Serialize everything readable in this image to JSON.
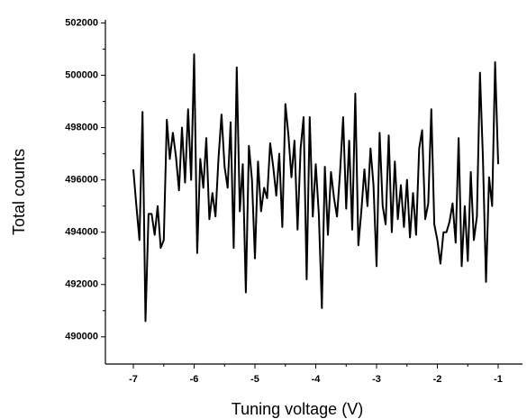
{
  "chart_data": {
    "type": "line",
    "x_label": "Tuning voltage (V)",
    "y_label": "Total counts",
    "xlim": [
      -7.46,
      -0.6
    ],
    "ylim": [
      488960,
      502120
    ],
    "xticks": [
      -7,
      -6,
      -5,
      -4,
      -3,
      -2,
      -1
    ],
    "yticks": [
      490000,
      492000,
      494000,
      496000,
      498000,
      500000,
      502000
    ],
    "x": [
      -7.0,
      -6.95,
      -6.9,
      -6.85,
      -6.8,
      -6.75,
      -6.7,
      -6.65,
      -6.6,
      -6.55,
      -6.5,
      -6.45,
      -6.4,
      -6.35,
      -6.3,
      -6.25,
      -6.2,
      -6.15,
      -6.1,
      -6.05,
      -6.0,
      -5.95,
      -5.9,
      -5.85,
      -5.8,
      -5.75,
      -5.7,
      -5.65,
      -5.6,
      -5.55,
      -5.5,
      -5.45,
      -5.4,
      -5.35,
      -5.3,
      -5.25,
      -5.2,
      -5.15,
      -5.1,
      -5.05,
      -5.0,
      -4.95,
      -4.9,
      -4.85,
      -4.8,
      -4.75,
      -4.7,
      -4.65,
      -4.6,
      -4.55,
      -4.5,
      -4.45,
      -4.4,
      -4.35,
      -4.3,
      -4.25,
      -4.2,
      -4.15,
      -4.1,
      -4.05,
      -4.0,
      -3.95,
      -3.9,
      -3.85,
      -3.8,
      -3.75,
      -3.7,
      -3.65,
      -3.6,
      -3.55,
      -3.5,
      -3.45,
      -3.4,
      -3.35,
      -3.3,
      -3.25,
      -3.2,
      -3.15,
      -3.1,
      -3.05,
      -3.0,
      -2.95,
      -2.9,
      -2.85,
      -2.8,
      -2.75,
      -2.7,
      -2.65,
      -2.6,
      -2.55,
      -2.5,
      -2.45,
      -2.4,
      -2.35,
      -2.3,
      -2.25,
      -2.2,
      -2.15,
      -2.1,
      -2.05,
      -2.0,
      -1.95,
      -1.9,
      -1.85,
      -1.8,
      -1.75,
      -1.7,
      -1.65,
      -1.6,
      -1.55,
      -1.5,
      -1.45,
      -1.4,
      -1.35,
      -1.3,
      -1.25,
      -1.2,
      -1.15,
      -1.1,
      -1.05,
      -1.0
    ],
    "series": [
      {
        "color": "#000000",
        "values": [
          496400,
          495000,
          493700,
          498600,
          490600,
          494700,
          494700,
          493900,
          495000,
          493400,
          493700,
          498300,
          496800,
          497800,
          496900,
          495600,
          498000,
          495900,
          498700,
          496000,
          500800,
          493200,
          496800,
          495700,
          497600,
          494500,
          495500,
          494600,
          496800,
          498500,
          496500,
          495700,
          498200,
          493400,
          500300,
          494800,
          496600,
          491700,
          497300,
          496000,
          493000,
          496700,
          494800,
          495700,
          495300,
          497400,
          496500,
          495400,
          497000,
          494200,
          498900,
          497700,
          496100,
          497500,
          494100,
          497200,
          498400,
          492200,
          498400,
          494600,
          496600,
          494700,
          491100,
          496500,
          493900,
          496300,
          495300,
          494600,
          496300,
          498400,
          494900,
          497500,
          494100,
          499300,
          493500,
          494800,
          496400,
          495000,
          497200,
          495800,
          492700,
          497800,
          495000,
          494300,
          497700,
          494000,
          496700,
          494500,
          495800,
          494200,
          496000,
          493800,
          495500,
          493900,
          497200,
          497900,
          494500,
          495100,
          498700,
          494300,
          493700,
          492800,
          494000,
          494000,
          494400,
          495100,
          493600,
          497600,
          492700,
          495000,
          492900,
          496300,
          493700,
          494600,
          500100,
          496800,
          492100,
          496100,
          495000,
          500500,
          496600
        ]
      }
    ]
  }
}
